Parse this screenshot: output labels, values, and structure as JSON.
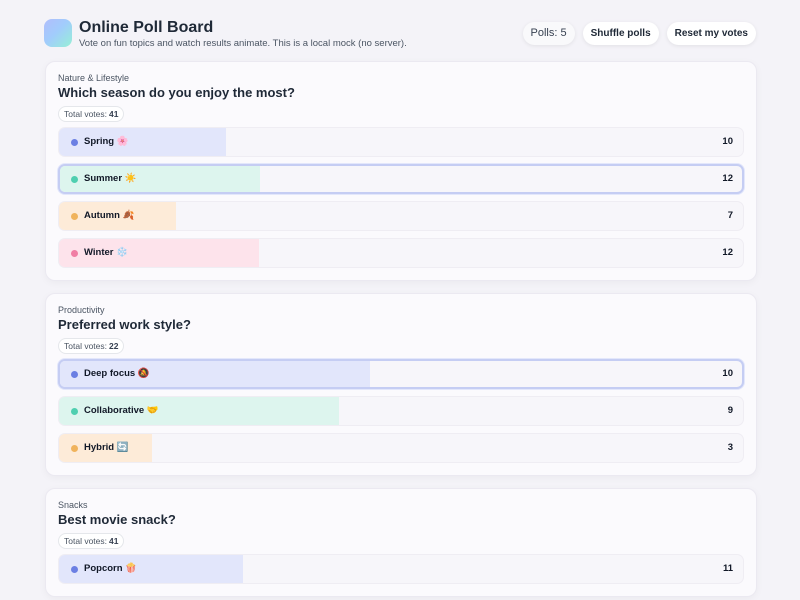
{
  "header": {
    "title": "Online Poll Board",
    "subtitle": "Vote on fun topics and watch results animate. This is a local mock (no server).",
    "polls_label": "Polls:",
    "polls_count": 5,
    "shuffle_button": "Shuffle polls",
    "reset_button": "Reset my votes"
  },
  "total_votes_label": "Total votes:",
  "polls": [
    {
      "category": "Nature & Lifestyle",
      "question": "Which season do you enjoy the most?",
      "total_votes": 41,
      "options": [
        {
          "label": "Spring 🌸",
          "votes": 10,
          "color": "#6b7fe3",
          "fill": "#e2e6fb",
          "selected": false
        },
        {
          "label": "Summer ☀️",
          "votes": 12,
          "color": "#4fcfb0",
          "fill": "#ddf5ee",
          "selected": true
        },
        {
          "label": "Autumn 🍂",
          "votes": 7,
          "color": "#f0b35c",
          "fill": "#fdebd8",
          "selected": false
        },
        {
          "label": "Winter ❄️",
          "votes": 12,
          "color": "#f07ea4",
          "fill": "#fde3eb",
          "selected": false
        }
      ]
    },
    {
      "category": "Productivity",
      "question": "Preferred work style?",
      "total_votes": 22,
      "options": [
        {
          "label": "Deep focus 🔕",
          "votes": 10,
          "color": "#6b7fe3",
          "fill": "#e2e6fb",
          "selected": true
        },
        {
          "label": "Collaborative 🤝",
          "votes": 9,
          "color": "#4fcfb0",
          "fill": "#ddf5ee",
          "selected": false
        },
        {
          "label": "Hybrid 🔄",
          "votes": 3,
          "color": "#f0b35c",
          "fill": "#fdebd8",
          "selected": false
        }
      ]
    },
    {
      "category": "Snacks",
      "question": "Best movie snack?",
      "total_votes": 41,
      "options": [
        {
          "label": "Popcorn 🍿",
          "votes": 11,
          "color": "#6b7fe3",
          "fill": "#e2e6fb",
          "selected": false
        }
      ]
    }
  ]
}
